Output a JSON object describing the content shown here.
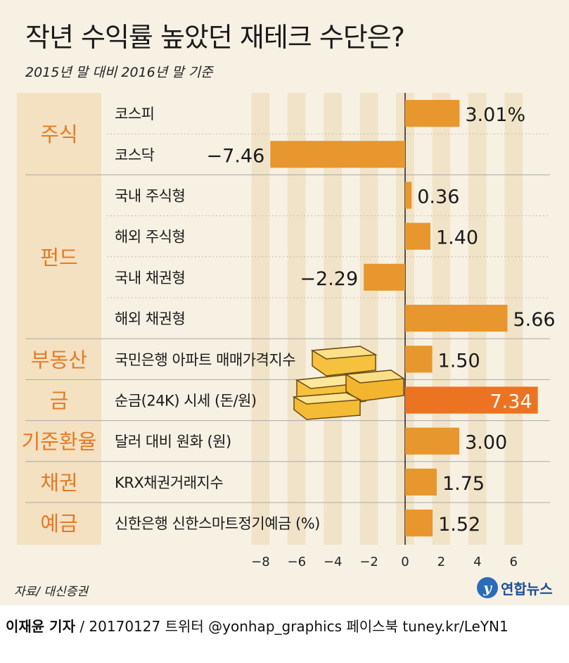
{
  "header": {
    "title": "작년 수익률 높았던 재테크 수단은?",
    "subtitle": "2015년 말 대비 2016년 말 기준"
  },
  "chart_data": {
    "type": "bar",
    "orientation": "horizontal",
    "unit": "%",
    "xlim": [
      -8,
      7.8
    ],
    "xticks": [
      "−8",
      "−6",
      "−4",
      "−2",
      "0",
      "2",
      "4",
      "6"
    ],
    "xtick_values": [
      -8,
      -6,
      -4,
      -2,
      0,
      2,
      4,
      6
    ],
    "groups": [
      {
        "name": "주식",
        "items": [
          {
            "label": "코스피",
            "value": 3.01,
            "display": "3.01%"
          },
          {
            "label": "코스닥",
            "value": -7.46,
            "display": "−7.46"
          }
        ]
      },
      {
        "name": "펀드",
        "items": [
          {
            "label": "국내 주식형",
            "value": 0.36,
            "display": "0.36"
          },
          {
            "label": "해외 주식형",
            "value": 1.4,
            "display": "1.40"
          },
          {
            "label": "국내 채권형",
            "value": -2.29,
            "display": "−2.29"
          },
          {
            "label": "해외 채권형",
            "value": 5.66,
            "display": "5.66"
          }
        ]
      },
      {
        "name": "부동산",
        "items": [
          {
            "label": "국민은행 아파트 매매가격지수",
            "value": 1.5,
            "display": "1.50"
          }
        ]
      },
      {
        "name": "금",
        "items": [
          {
            "label": "순금(24K) 시세 (돈/원)",
            "value": 7.34,
            "display": "7.34",
            "highlight": true
          }
        ]
      },
      {
        "name": "기준환율",
        "items": [
          {
            "label": "달러 대비 원화 (원)",
            "value": 3.0,
            "display": "3.00"
          }
        ]
      },
      {
        "name": "채권",
        "items": [
          {
            "label": "KRX채권거래지수",
            "value": 1.75,
            "display": "1.75"
          }
        ]
      },
      {
        "name": "예금",
        "items": [
          {
            "label": "신한은행 신한스마트정기예금 (%)",
            "value": 1.52,
            "display": "1.52"
          }
        ]
      }
    ],
    "colors": {
      "bar": "#e8962e",
      "highlight": "#ec7322",
      "group_text": "#e57a24",
      "group_bg": "#f3e1c2",
      "stripe": "#f1e3c8",
      "gold": "#f6c13c"
    }
  },
  "footer": {
    "source": "자료/ 대신증권",
    "brand": "연합뉴스",
    "reporter": "이재윤 기자",
    "credit": " / 20170127   트위터 @yonhap_graphics  페이스북 tuney.kr/LeYN1"
  }
}
